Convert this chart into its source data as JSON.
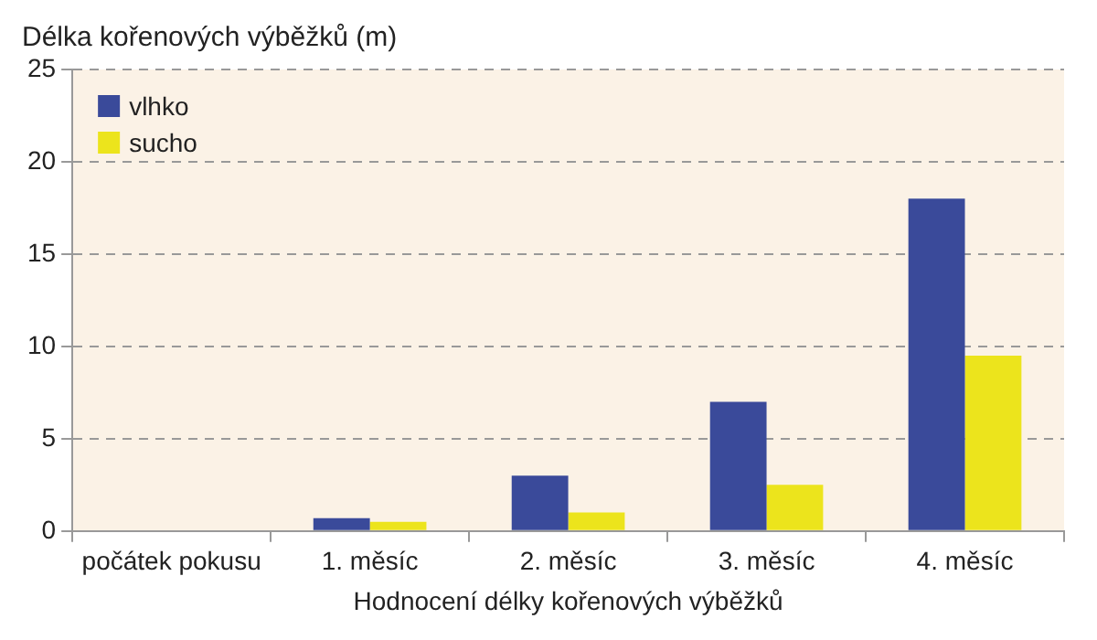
{
  "chart_data": {
    "type": "bar",
    "ylabel": "Délka kořenových výběžků (m)",
    "xlabel": "Hodnocení délky kořenových výběžků",
    "categories": [
      "počátek pokusu",
      "1. měsíc",
      "2. měsíc",
      "3. měsíc",
      "4. měsíc"
    ],
    "series": [
      {
        "name": "vlhko",
        "color": "#3a4a9a",
        "values": [
          0,
          0.7,
          3,
          7,
          18
        ]
      },
      {
        "name": "sucho",
        "color": "#ece41c",
        "values": [
          0,
          0.5,
          1,
          2.5,
          9.5
        ]
      }
    ],
    "ylim": [
      0,
      25
    ],
    "yticks": [
      0,
      5,
      10,
      15,
      20,
      25
    ],
    "grid": "y",
    "legend": "top left"
  }
}
